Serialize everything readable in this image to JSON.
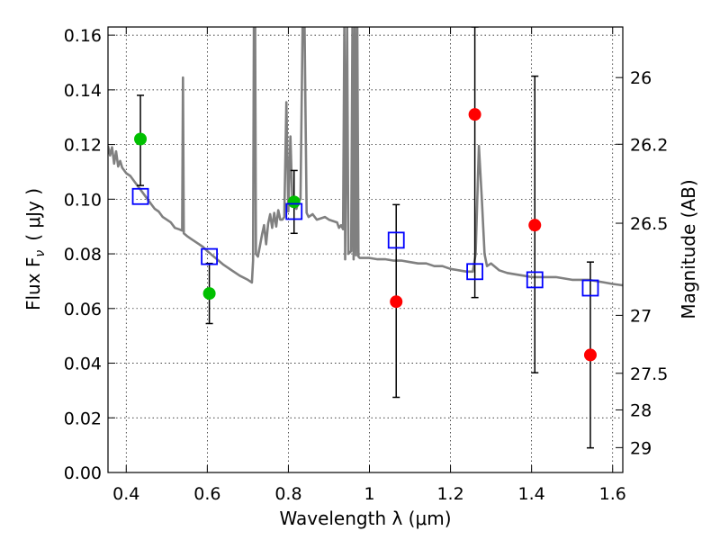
{
  "chart_data": {
    "type": "scatter",
    "xlabel": "Wavelength  λ (μm)",
    "ylabel": "Flux  F",
    "ylabel_sub": "ν",
    "ylabel_unit": "( μJy )",
    "y2label": "Magnitude (AB)",
    "xlim": [
      0.355,
      1.625
    ],
    "ylim": [
      0.0,
      0.163
    ],
    "grid": true,
    "x_ticks": [
      0.4,
      0.6,
      0.8,
      1.0,
      1.2,
      1.4,
      1.6
    ],
    "x_tick_labels": [
      "0.4",
      "0.6",
      "0.8",
      "1",
      "1.2",
      "1.4",
      "1.6"
    ],
    "y_ticks": [
      0.0,
      0.02,
      0.04,
      0.06,
      0.08,
      0.1,
      0.12,
      0.14,
      0.16
    ],
    "y_tick_labels": [
      "0.00",
      "0.02",
      "0.04",
      "0.06",
      "0.08",
      "0.10",
      "0.12",
      "0.14",
      "0.16"
    ],
    "y2_ticks": [
      {
        "label": "26",
        "flux": 0.1445
      },
      {
        "label": "26.2",
        "flux": 0.1201
      },
      {
        "label": "26.5",
        "flux": 0.0912
      },
      {
        "label": "27",
        "flux": 0.0575
      },
      {
        "label": "27.5",
        "flux": 0.0363
      },
      {
        "label": "28",
        "flux": 0.0229
      },
      {
        "label": "29",
        "flux": 0.0091
      }
    ],
    "series": [
      {
        "color": "#00c000",
        "marker": "filled-circle",
        "points": [
          {
            "x": 0.435,
            "y": 0.122
          },
          {
            "x": 0.605,
            "y": 0.0655
          },
          {
            "x": 0.814,
            "y": 0.099
          }
        ]
      },
      {
        "color": "#ff0000",
        "marker": "filled-circle",
        "points": [
          {
            "x": 1.066,
            "y": 0.0625
          },
          {
            "x": 1.26,
            "y": 0.131
          },
          {
            "x": 1.408,
            "y": 0.0905
          },
          {
            "x": 1.545,
            "y": 0.043
          }
        ]
      },
      {
        "color": "#0000ff",
        "marker": "open-square",
        "points": [
          {
            "x": 0.435,
            "y": 0.101
          },
          {
            "x": 0.605,
            "y": 0.079
          },
          {
            "x": 0.814,
            "y": 0.0955
          },
          {
            "x": 1.066,
            "y": 0.085
          },
          {
            "x": 1.26,
            "y": 0.0735
          },
          {
            "x": 1.408,
            "y": 0.0705
          },
          {
            "x": 1.545,
            "y": 0.0675
          }
        ]
      }
    ],
    "error_bars": [
      {
        "x": 0.435,
        "low": 0.105,
        "high": 0.138
      },
      {
        "x": 0.605,
        "low": 0.0545,
        "high": 0.0765
      },
      {
        "x": 0.814,
        "low": 0.0875,
        "high": 0.1105
      },
      {
        "x": 1.066,
        "low": 0.0275,
        "high": 0.098
      },
      {
        "x": 1.26,
        "low": 0.064,
        "high": 0.163
      },
      {
        "x": 1.408,
        "low": 0.0365,
        "high": 0.145
      },
      {
        "x": 1.545,
        "low": 0.009,
        "high": 0.077
      }
    ],
    "sed_model": {
      "color": "#808080",
      "points": [
        [
          0.355,
          0.1195
        ],
        [
          0.36,
          0.116
        ],
        [
          0.365,
          0.119
        ],
        [
          0.37,
          0.113
        ],
        [
          0.375,
          0.1175
        ],
        [
          0.38,
          0.112
        ],
        [
          0.385,
          0.114
        ],
        [
          0.39,
          0.1115
        ],
        [
          0.4,
          0.1095
        ],
        [
          0.41,
          0.1085
        ],
        [
          0.42,
          0.1065
        ],
        [
          0.43,
          0.1045
        ],
        [
          0.44,
          0.1025
        ],
        [
          0.45,
          0.1005
        ],
        [
          0.46,
          0.0985
        ],
        [
          0.47,
          0.0965
        ],
        [
          0.48,
          0.0955
        ],
        [
          0.49,
          0.0935
        ],
        [
          0.5,
          0.0925
        ],
        [
          0.51,
          0.0915
        ],
        [
          0.52,
          0.0895
        ],
        [
          0.53,
          0.089
        ],
        [
          0.538,
          0.0885
        ],
        [
          0.54,
          0.1445
        ],
        [
          0.542,
          0.0875
        ],
        [
          0.55,
          0.0865
        ],
        [
          0.56,
          0.0855
        ],
        [
          0.57,
          0.0845
        ],
        [
          0.58,
          0.0835
        ],
        [
          0.59,
          0.0825
        ],
        [
          0.6,
          0.081
        ],
        [
          0.62,
          0.0785
        ],
        [
          0.64,
          0.076
        ],
        [
          0.66,
          0.074
        ],
        [
          0.68,
          0.072
        ],
        [
          0.7,
          0.0705
        ],
        [
          0.71,
          0.0695
        ],
        [
          0.713,
          0.0775
        ],
        [
          0.715,
          0.163
        ],
        [
          0.718,
          0.163
        ],
        [
          0.72,
          0.08
        ],
        [
          0.725,
          0.079
        ],
        [
          0.73,
          0.083
        ],
        [
          0.735,
          0.087
        ],
        [
          0.74,
          0.0905
        ],
        [
          0.745,
          0.0835
        ],
        [
          0.75,
          0.091
        ],
        [
          0.755,
          0.0945
        ],
        [
          0.76,
          0.0895
        ],
        [
          0.765,
          0.095
        ],
        [
          0.77,
          0.09
        ],
        [
          0.775,
          0.096
        ],
        [
          0.78,
          0.0925
        ],
        [
          0.785,
          0.0925
        ],
        [
          0.79,
          0.0935
        ],
        [
          0.795,
          0.1355
        ],
        [
          0.8,
          0.0955
        ],
        [
          0.805,
          0.123
        ],
        [
          0.81,
          0.098
        ],
        [
          0.82,
          0.0965
        ],
        [
          0.825,
          0.0995
        ],
        [
          0.83,
          0.1
        ],
        [
          0.835,
          0.163
        ],
        [
          0.84,
          0.163
        ],
        [
          0.845,
          0.095
        ],
        [
          0.85,
          0.0935
        ],
        [
          0.86,
          0.0945
        ],
        [
          0.87,
          0.0925
        ],
        [
          0.88,
          0.093
        ],
        [
          0.89,
          0.0935
        ],
        [
          0.9,
          0.0925
        ],
        [
          0.91,
          0.092
        ],
        [
          0.92,
          0.0915
        ],
        [
          0.925,
          0.0895
        ],
        [
          0.93,
          0.0905
        ],
        [
          0.935,
          0.089
        ],
        [
          0.938,
          0.163
        ],
        [
          0.94,
          0.078
        ],
        [
          0.945,
          0.163
        ],
        [
          0.948,
          0.08
        ],
        [
          0.955,
          0.081
        ],
        [
          0.958,
          0.163
        ],
        [
          0.961,
          0.078
        ],
        [
          0.964,
          0.163
        ],
        [
          0.967,
          0.0795
        ],
        [
          0.97,
          0.163
        ],
        [
          0.973,
          0.079
        ],
        [
          0.976,
          0.0785
        ],
        [
          0.98,
          0.0785
        ],
        [
          1.0,
          0.0785
        ],
        [
          1.02,
          0.078
        ],
        [
          1.04,
          0.078
        ],
        [
          1.06,
          0.0775
        ],
        [
          1.08,
          0.0775
        ],
        [
          1.1,
          0.077
        ],
        [
          1.12,
          0.0765
        ],
        [
          1.14,
          0.0765
        ],
        [
          1.16,
          0.0755
        ],
        [
          1.18,
          0.0755
        ],
        [
          1.2,
          0.0745
        ],
        [
          1.22,
          0.074
        ],
        [
          1.24,
          0.0735
        ],
        [
          1.255,
          0.0735
        ],
        [
          1.262,
          0.08
        ],
        [
          1.27,
          0.1195
        ],
        [
          1.277,
          0.1005
        ],
        [
          1.284,
          0.08
        ],
        [
          1.29,
          0.0755
        ],
        [
          1.3,
          0.0765
        ],
        [
          1.32,
          0.074
        ],
        [
          1.34,
          0.073
        ],
        [
          1.36,
          0.0725
        ],
        [
          1.38,
          0.072
        ],
        [
          1.4,
          0.0715
        ],
        [
          1.42,
          0.0715
        ],
        [
          1.44,
          0.0715
        ],
        [
          1.46,
          0.0715
        ],
        [
          1.48,
          0.071
        ],
        [
          1.5,
          0.0705
        ],
        [
          1.52,
          0.0705
        ],
        [
          1.54,
          0.0705
        ],
        [
          1.56,
          0.07
        ],
        [
          1.58,
          0.0695
        ],
        [
          1.6,
          0.069
        ],
        [
          1.625,
          0.0685
        ]
      ]
    }
  }
}
